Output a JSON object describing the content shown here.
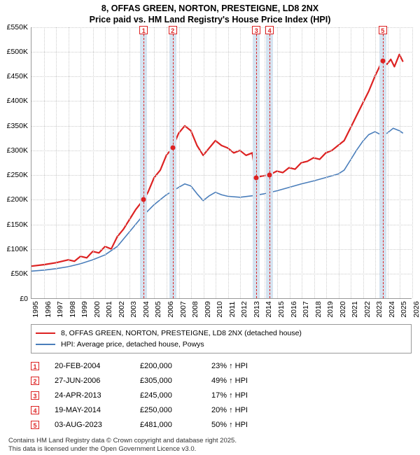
{
  "title_line1": "8, OFFAS GREEN, NORTON, PRESTEIGNE, LD8 2NX",
  "title_line2": "Price paid vs. HM Land Registry's House Price Index (HPI)",
  "chart": {
    "type": "line",
    "background_color": "#ffffff",
    "grid_color": "#cccccc",
    "axis_color": "#999999",
    "x_min": 1995,
    "x_max": 2026,
    "x_ticks": [
      1995,
      1996,
      1997,
      1998,
      1999,
      2000,
      2001,
      2002,
      2003,
      2004,
      2005,
      2006,
      2007,
      2008,
      2009,
      2010,
      2011,
      2012,
      2013,
      2014,
      2015,
      2016,
      2017,
      2018,
      2019,
      2020,
      2021,
      2022,
      2023,
      2024,
      2025,
      2026
    ],
    "y_min": 0,
    "y_max": 550000,
    "y_ticks": [
      0,
      50000,
      100000,
      150000,
      200000,
      250000,
      300000,
      350000,
      400000,
      450000,
      500000,
      550000
    ],
    "y_tick_labels": [
      "£0",
      "£50K",
      "£100K",
      "£150K",
      "£200K",
      "£250K",
      "£300K",
      "£350K",
      "£400K",
      "£450K",
      "£500K",
      "£550K"
    ],
    "series": [
      {
        "id": "property",
        "color": "#dd2222",
        "width": 2.2,
        "points": [
          [
            1995,
            65000
          ],
          [
            1996,
            68000
          ],
          [
            1997,
            72000
          ],
          [
            1998,
            78000
          ],
          [
            1998.5,
            75000
          ],
          [
            1999,
            85000
          ],
          [
            1999.5,
            82000
          ],
          [
            2000,
            95000
          ],
          [
            2000.5,
            92000
          ],
          [
            2001,
            105000
          ],
          [
            2001.5,
            100000
          ],
          [
            2002,
            125000
          ],
          [
            2002.5,
            140000
          ],
          [
            2003,
            160000
          ],
          [
            2003.5,
            180000
          ],
          [
            2004.13,
            200000
          ],
          [
            2004.5,
            215000
          ],
          [
            2005,
            245000
          ],
          [
            2005.5,
            260000
          ],
          [
            2006,
            290000
          ],
          [
            2006.49,
            305000
          ],
          [
            2007,
            335000
          ],
          [
            2007.5,
            350000
          ],
          [
            2008,
            340000
          ],
          [
            2008.5,
            310000
          ],
          [
            2009,
            290000
          ],
          [
            2009.5,
            305000
          ],
          [
            2010,
            320000
          ],
          [
            2010.5,
            310000
          ],
          [
            2011,
            305000
          ],
          [
            2011.5,
            295000
          ],
          [
            2012,
            300000
          ],
          [
            2012.5,
            290000
          ],
          [
            2013,
            295000
          ],
          [
            2013.31,
            245000
          ],
          [
            2013.8,
            248000
          ],
          [
            2014.38,
            250000
          ],
          [
            2015,
            258000
          ],
          [
            2015.5,
            255000
          ],
          [
            2016,
            265000
          ],
          [
            2016.5,
            262000
          ],
          [
            2017,
            275000
          ],
          [
            2017.5,
            278000
          ],
          [
            2018,
            285000
          ],
          [
            2018.5,
            282000
          ],
          [
            2019,
            295000
          ],
          [
            2019.5,
            300000
          ],
          [
            2020,
            310000
          ],
          [
            2020.5,
            320000
          ],
          [
            2021,
            345000
          ],
          [
            2021.5,
            370000
          ],
          [
            2022,
            395000
          ],
          [
            2022.5,
            420000
          ],
          [
            2023,
            450000
          ],
          [
            2023.59,
            481000
          ],
          [
            2024,
            475000
          ],
          [
            2024.3,
            485000
          ],
          [
            2024.6,
            470000
          ],
          [
            2025,
            495000
          ],
          [
            2025.3,
            480000
          ]
        ]
      },
      {
        "id": "hpi",
        "color": "#4a7ebb",
        "width": 1.6,
        "points": [
          [
            1995,
            55000
          ],
          [
            1996,
            57000
          ],
          [
            1997,
            60000
          ],
          [
            1998,
            64000
          ],
          [
            1999,
            70000
          ],
          [
            2000,
            78000
          ],
          [
            2001,
            88000
          ],
          [
            2002,
            105000
          ],
          [
            2003,
            135000
          ],
          [
            2004,
            165000
          ],
          [
            2005,
            190000
          ],
          [
            2006,
            210000
          ],
          [
            2007,
            225000
          ],
          [
            2007.5,
            232000
          ],
          [
            2008,
            228000
          ],
          [
            2008.5,
            212000
          ],
          [
            2009,
            198000
          ],
          [
            2009.5,
            208000
          ],
          [
            2010,
            215000
          ],
          [
            2010.5,
            210000
          ],
          [
            2011,
            207000
          ],
          [
            2012,
            205000
          ],
          [
            2013,
            208000
          ],
          [
            2014,
            212000
          ],
          [
            2015,
            218000
          ],
          [
            2016,
            225000
          ],
          [
            2017,
            232000
          ],
          [
            2018,
            238000
          ],
          [
            2019,
            245000
          ],
          [
            2020,
            252000
          ],
          [
            2020.5,
            260000
          ],
          [
            2021,
            280000
          ],
          [
            2021.5,
            300000
          ],
          [
            2022,
            318000
          ],
          [
            2022.5,
            332000
          ],
          [
            2023,
            338000
          ],
          [
            2023.5,
            332000
          ],
          [
            2024,
            335000
          ],
          [
            2024.5,
            345000
          ],
          [
            2025,
            340000
          ],
          [
            2025.3,
            335000
          ]
        ]
      }
    ],
    "sales": [
      {
        "n": "1",
        "year": 2004.13,
        "price": 200000,
        "band_color": "#d5e3f0"
      },
      {
        "n": "2",
        "year": 2006.49,
        "price": 305000,
        "band_color": "#d5e3f0"
      },
      {
        "n": "3",
        "year": 2013.31,
        "price": 245000,
        "band_color": "#d5e3f0"
      },
      {
        "n": "4",
        "year": 2014.38,
        "price": 250000,
        "band_color": "#d5e3f0"
      },
      {
        "n": "5",
        "year": 2023.59,
        "price": 481000,
        "band_color": "#d5e3f0"
      }
    ],
    "sale_point_color": "#dd2222",
    "sale_line_color": "#dd2222",
    "sale_marker_border": "#dd2222"
  },
  "legend": {
    "items": [
      {
        "color": "#dd2222",
        "width": 2.5,
        "label": "8, OFFAS GREEN, NORTON, PRESTEIGNE, LD8 2NX (detached house)"
      },
      {
        "color": "#4a7ebb",
        "width": 2,
        "label": "HPI: Average price, detached house, Powys"
      }
    ]
  },
  "sales_table": [
    {
      "n": "1",
      "date": "20-FEB-2004",
      "price": "£200,000",
      "pct": "23% ↑ HPI"
    },
    {
      "n": "2",
      "date": "27-JUN-2006",
      "price": "£305,000",
      "pct": "49% ↑ HPI"
    },
    {
      "n": "3",
      "date": "24-APR-2013",
      "price": "£245,000",
      "pct": "17% ↑ HPI"
    },
    {
      "n": "4",
      "date": "19-MAY-2014",
      "price": "£250,000",
      "pct": "20% ↑ HPI"
    },
    {
      "n": "5",
      "date": "03-AUG-2023",
      "price": "£481,000",
      "pct": "50% ↑ HPI"
    }
  ],
  "footer_line1": "Contains HM Land Registry data © Crown copyright and database right 2025.",
  "footer_line2": "This data is licensed under the Open Government Licence v3.0."
}
